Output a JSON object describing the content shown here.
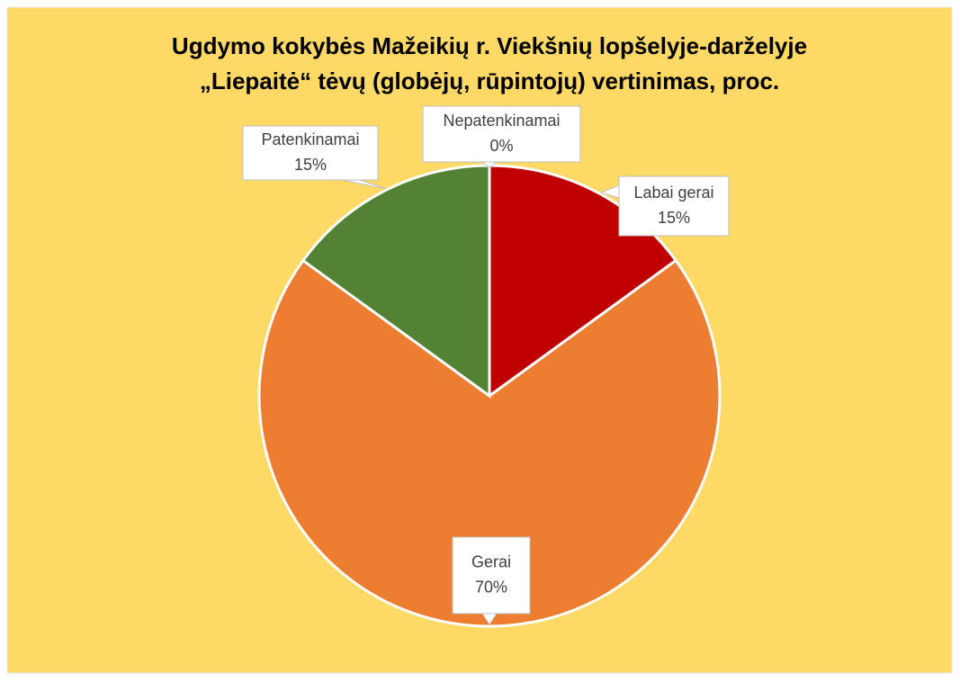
{
  "chart_data": {
    "type": "pie",
    "title": [
      "Ugdymo kokybės Mažeikių r. Viekšnių lopšelyje-darželyje",
      "„Liepaitė“ tėvų (globėjų, rūpintojų) vertinimas, proc."
    ],
    "categories": [
      "Labai gerai",
      "Gerai",
      "Patenkinamai",
      "Nepatenkinamai"
    ],
    "values": [
      15,
      70,
      15,
      0
    ],
    "value_labels": [
      "15%",
      "70%",
      "15%",
      "0%"
    ],
    "colors": [
      "#C00000",
      "#ED7D31",
      "#548235",
      "#4472C4"
    ]
  }
}
